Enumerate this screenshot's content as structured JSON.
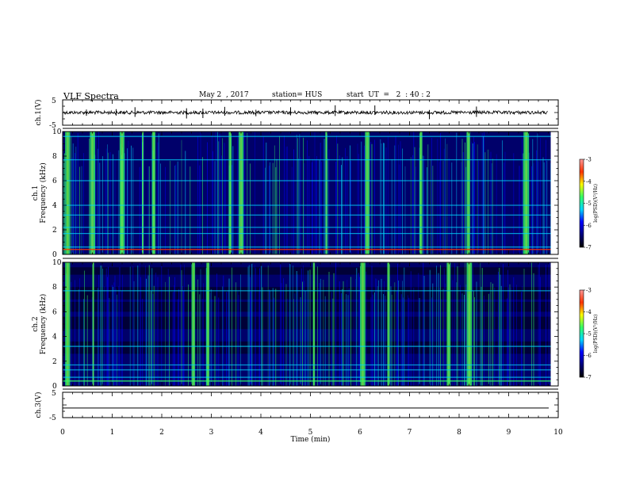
{
  "header": {
    "title": "VLF Spectra",
    "date": "May 2  , 2017",
    "station": "station= HUS",
    "start": "start  UT  =   2  : 40 : 2"
  },
  "colors": {
    "background": "#ffffff",
    "axis": "#000000",
    "spectrogram_floor": "#00006a",
    "colormap": [
      "#000000",
      "#00007a",
      "#0000ff",
      "#00d8ff",
      "#33ff66",
      "#ffff00",
      "#ff3300",
      "#ff9999"
    ]
  },
  "chart_data": [
    {
      "type": "line",
      "panel": "ch1-waveform",
      "ylabel": "ch.1(V)",
      "yticks": [
        "5",
        "-5"
      ],
      "ylim": [
        -5,
        5
      ],
      "xlim": [
        0,
        10
      ],
      "baseline": 0,
      "spike_times": [
        0.48,
        1.08,
        1.46,
        2.5,
        2.83,
        3.27,
        3.9,
        4.6,
        5.5,
        6.3,
        7.4,
        8.35
      ]
    },
    {
      "type": "heatmap",
      "panel": "ch1-spectrogram",
      "ylabel": "ch.1\nFrequency (kHz)",
      "ylabel_line1": "ch.1",
      "ylabel_line2": "Frequency (kHz)",
      "ylim": [
        0,
        10
      ],
      "xlim": [
        0,
        10
      ],
      "yticks": [
        "0",
        "2",
        "4",
        "6",
        "8",
        "10"
      ],
      "colorbar": {
        "label": "log(PSD)(V²/Hz)",
        "ticks": [
          "-3",
          "-4",
          "-5",
          "-6",
          "-7"
        ],
        "range": [
          -7,
          -3
        ]
      },
      "bright_band_times": [
        0.05,
        0.55,
        1.15,
        1.6,
        1.8,
        3.35,
        3.55,
        5.3,
        6.1,
        7.2,
        8.15,
        9.3
      ],
      "line_frequencies_khz": [
        0.6,
        1.7,
        2.2,
        3.2,
        4.0,
        6.0,
        7.7,
        9.6
      ]
    },
    {
      "type": "heatmap",
      "panel": "ch2-spectrogram",
      "ylabel": "ch.2\nFrequency (kHz)",
      "ylabel_line1": "ch.2",
      "ylabel_line2": "Frequency (kHz)",
      "ylim": [
        0,
        10
      ],
      "xlim": [
        0,
        10
      ],
      "yticks": [
        "0",
        "2",
        "4",
        "6",
        "8",
        "10"
      ],
      "colorbar": {
        "label": "log(PSD)(V²/Hz)",
        "ticks": [
          "-3",
          "-4",
          "-5",
          "-6",
          "-7"
        ],
        "range": [
          -7,
          -3
        ]
      },
      "bright_band_times": [
        0.05,
        0.6,
        2.6,
        2.9,
        5.05,
        6.0,
        6.55,
        7.75,
        8.15
      ],
      "line_frequencies_khz": [
        0.7,
        1.3,
        1.7,
        3.2,
        7.7
      ]
    },
    {
      "type": "line",
      "panel": "ch3-waveform",
      "ylabel": "ch.3(V)",
      "yticks": [
        "5",
        "-5"
      ],
      "ylim": [
        -5,
        5
      ],
      "xlim": [
        0,
        10
      ],
      "baseline": -1.2,
      "xlabel": "Time  (min)",
      "xticks": [
        "0",
        "1",
        "2",
        "3",
        "4",
        "5",
        "6",
        "7",
        "8",
        "9",
        "10"
      ]
    }
  ]
}
